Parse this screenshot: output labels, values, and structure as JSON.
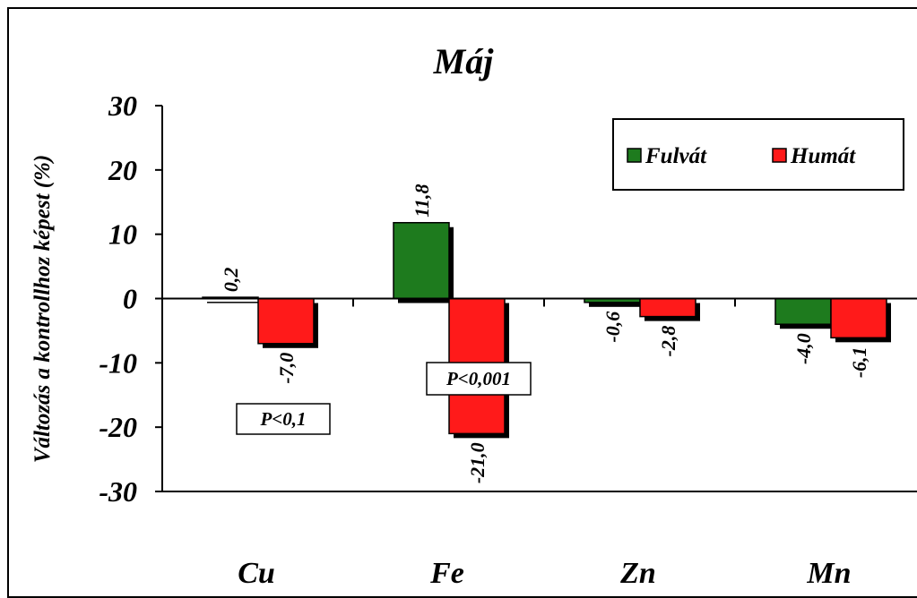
{
  "chart_data": {
    "type": "bar",
    "title": "Máj",
    "ylabel": "Változás a kontrollhoz képest (%)",
    "xlabel": "",
    "categories": [
      "Cu",
      "Fe",
      "Zn",
      "Mn"
    ],
    "series": [
      {
        "name": "Fulvát",
        "values": [
          0.2,
          11.8,
          -0.6,
          -4.0
        ],
        "labels": [
          "0,2",
          "11,8",
          "-0,6",
          "-4,0"
        ],
        "color": "#1e7b1e"
      },
      {
        "name": "Humát",
        "values": [
          -7.0,
          -21.0,
          -2.8,
          -6.1
        ],
        "labels": [
          "-7,0",
          "-21,0",
          "-2,8",
          "-6,1"
        ],
        "color": "#ff1a1a"
      }
    ],
    "ylim": [
      -30,
      30
    ],
    "yticks": [
      30,
      20,
      10,
      0,
      -10,
      -20,
      -30
    ],
    "ytick_labels": [
      "30",
      "20",
      "10",
      "0",
      "-10",
      "-20",
      "-30"
    ],
    "grid": false,
    "legend_position": "top-right",
    "annotations": [
      {
        "text": "P<0,1",
        "category": "Cu"
      },
      {
        "text": "P<0,001",
        "category": "Fe"
      }
    ]
  }
}
